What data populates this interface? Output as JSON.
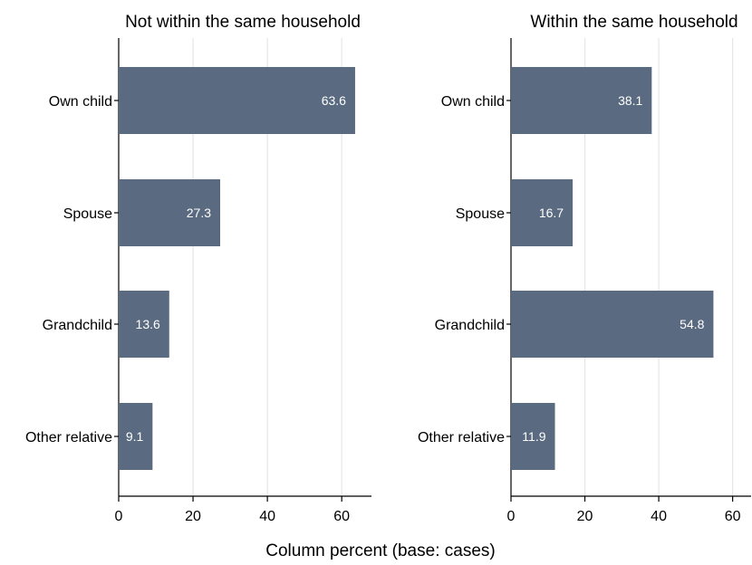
{
  "chart_data": {
    "type": "bar",
    "orientation": "horizontal",
    "xlabel": "Column percent (base: cases)",
    "bar_color": "#5a6a80",
    "label_color": "#ffffff",
    "grid": true,
    "grid_color": "#e6e6e6",
    "panels": [
      {
        "title": "Not within the same household",
        "categories": [
          "Own child",
          "Spouse",
          "Grandchild",
          "Other relative"
        ],
        "values": [
          63.6,
          27.3,
          13.6,
          9.1
        ],
        "data_labels": [
          "63.6",
          "27.3",
          "13.6",
          "9.1"
        ],
        "xlim": [
          0,
          68
        ],
        "xticks": [
          0,
          20,
          40,
          60
        ],
        "xtick_labels": [
          "0",
          "20",
          "40",
          "60"
        ]
      },
      {
        "title": "Within the same household",
        "categories": [
          "Own child",
          "Spouse",
          "Grandchild",
          "Other relative"
        ],
        "values": [
          38.1,
          16.7,
          54.8,
          11.9
        ],
        "data_labels": [
          "38.1",
          "16.7",
          "54.8",
          "11.9"
        ],
        "xlim": [
          0,
          65
        ],
        "xticks": [
          0,
          20,
          40,
          60
        ],
        "xtick_labels": [
          "0",
          "20",
          "40",
          "60"
        ]
      }
    ]
  }
}
